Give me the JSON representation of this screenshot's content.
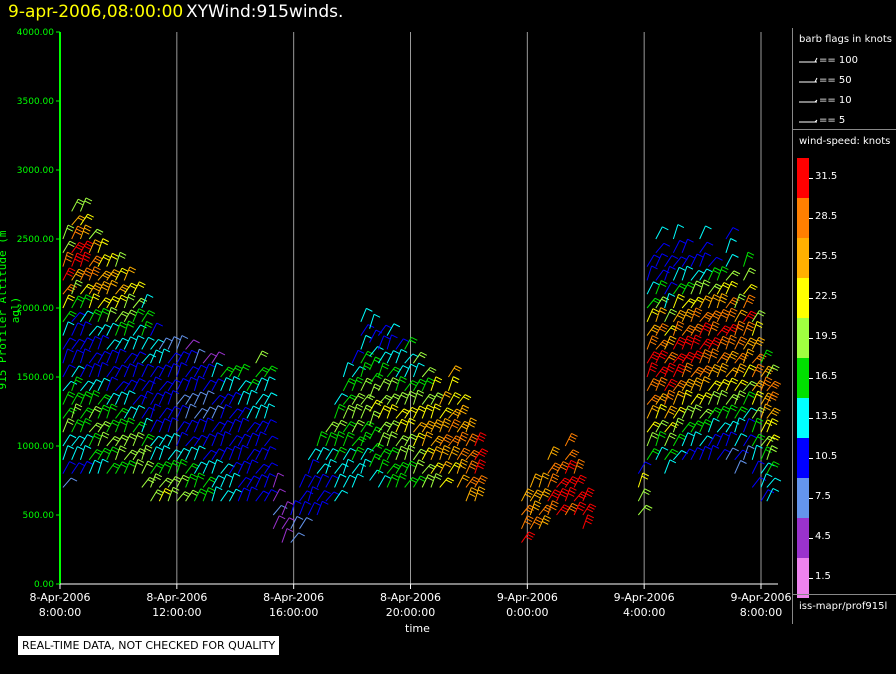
{
  "header": {
    "date_label": "9-apr-2006,08:00:00",
    "product_label": "XYWind:915winds."
  },
  "notice": "REAL-TIME DATA, NOT CHECKED FOR QUALITY",
  "legend": {
    "barb_title": "barb flags in knots",
    "barbs": [
      {
        "label": "== 100",
        "value": 100
      },
      {
        "label": "== 50",
        "value": 50
      },
      {
        "label": "== 10",
        "value": 10
      },
      {
        "label": "== 5",
        "value": 5
      }
    ],
    "speed_title": "wind-speed: knots",
    "color_levels": [
      {
        "label": "31.5",
        "color": "#ff0000"
      },
      {
        "label": "28.5",
        "color": "#ff7f00"
      },
      {
        "label": "25.5",
        "color": "#ffb000"
      },
      {
        "label": "22.5",
        "color": "#ffff00"
      },
      {
        "label": "19.5",
        "color": "#a0ff40"
      },
      {
        "label": "16.5",
        "color": "#00e000"
      },
      {
        "label": "13.5",
        "color": "#00ffff"
      },
      {
        "label": "10.5",
        "color": "#0000ff"
      },
      {
        "label": "7.5",
        "color": "#6495ed"
      },
      {
        "label": "4.5",
        "color": "#9a32cd"
      },
      {
        "label": "1.5",
        "color": "#ee82ee"
      }
    ],
    "source": "iss-mapr/prof915l"
  },
  "colors": {
    "axis": "#00ff00",
    "grid": "#ffffff",
    "background": "#000000"
  },
  "chart_data": {
    "type": "wind-barb time-height",
    "xlabel": "time",
    "ylabel": "915 Profiler Altitude (m agl)",
    "ylim": [
      0,
      4000
    ],
    "y_ticks": [
      "0.00",
      "500.00",
      "1000.00",
      "1500.00",
      "2000.00",
      "2500.00",
      "3000.00",
      "3500.00",
      "4000.00"
    ],
    "x_range_hours": [
      0,
      24.3
    ],
    "x_ticks": [
      {
        "line1": "8-Apr-2006",
        "line2": "8:00:00",
        "hour": 0
      },
      {
        "line1": "8-Apr-2006",
        "line2": "12:00:00",
        "hour": 4
      },
      {
        "line1": "8-Apr-2006",
        "line2": "16:00:00",
        "hour": 8
      },
      {
        "line1": "8-Apr-2006",
        "line2": "20:00:00",
        "hour": 12
      },
      {
        "line1": "9-Apr-2006",
        "line2": "0:00:00",
        "hour": 16
      },
      {
        "line1": "9-Apr-2006",
        "line2": "4:00:00",
        "hour": 20
      },
      {
        "line1": "9-Apr-2006",
        "line2": "8:00:00",
        "hour": 24
      }
    ],
    "columns": [
      {
        "hour": 0.1,
        "top": 2500,
        "speed": [
          8,
          9,
          12,
          14,
          18,
          17,
          16,
          14,
          11,
          9,
          10,
          12,
          16,
          22,
          28,
          31,
          28,
          20,
          18
        ]
      },
      {
        "hour": 0.4,
        "top": 2700,
        "speed": [
          9,
          12,
          13,
          16,
          18,
          17,
          15,
          12,
          10,
          9,
          9,
          11,
          15,
          20,
          26,
          30,
          31,
          29,
          24,
          20
        ]
      },
      {
        "hour": 0.7,
        "top": 2700,
        "speed": [
          10,
          12,
          14,
          16,
          17,
          16,
          14,
          11,
          10,
          9,
          10,
          12,
          17,
          23,
          28,
          31,
          30,
          26,
          22,
          19
        ]
      },
      {
        "hour": 1.0,
        "top": 2500,
        "speed": [
          12,
          15,
          17,
          19,
          18,
          16,
          13,
          11,
          10,
          11,
          12,
          16,
          21,
          25,
          29,
          27,
          24,
          20
        ]
      },
      {
        "hour": 1.3,
        "top": 2400,
        "speed": [
          14,
          16,
          18,
          19,
          17,
          15,
          12,
          11,
          10,
          11,
          13,
          17,
          22,
          26,
          25,
          23,
          21
        ]
      },
      {
        "hour": 1.6,
        "top": 2300,
        "speed": [
          15,
          17,
          18,
          17,
          16,
          13,
          11,
          10,
          11,
          12,
          14,
          18,
          21,
          24,
          26,
          22
        ]
      },
      {
        "hour": 1.9,
        "top": 2300,
        "speed": [
          16,
          18,
          19,
          17,
          15,
          12,
          11,
          10,
          10,
          12,
          15,
          19,
          22,
          25,
          21,
          19
        ]
      },
      {
        "hour": 2.2,
        "top": 2200,
        "speed": [
          17,
          19,
          18,
          16,
          14,
          12,
          10,
          10,
          11,
          13,
          15,
          18,
          20,
          22,
          24
        ]
      },
      {
        "hour": 2.5,
        "top": 2100,
        "speed": [
          18,
          20,
          18,
          16,
          14,
          11,
          10,
          10,
          11,
          12,
          14,
          16,
          18,
          21
        ]
      },
      {
        "hour": 2.8,
        "top": 2000,
        "speed": [
          19,
          20,
          18,
          15,
          13,
          11,
          10,
          9,
          10,
          12,
          13,
          15,
          17,
          14
        ]
      },
      {
        "hour": 3.1,
        "top": 1800,
        "speed": [
          20,
          19,
          17,
          14,
          12,
          11,
          10,
          9,
          10,
          11,
          12,
          13,
          9
        ]
      },
      {
        "hour": 3.4,
        "top": 1700,
        "speed": [
          21,
          19,
          16,
          14,
          12,
          10,
          9,
          9,
          10,
          11,
          12,
          8
        ]
      },
      {
        "hour": 3.7,
        "top": 1700,
        "speed": [
          20,
          18,
          16,
          13,
          12,
          10,
          9,
          9,
          10,
          11,
          11,
          7
        ]
      },
      {
        "hour": 4.0,
        "top": 1700,
        "speed": [
          19,
          18,
          15,
          13,
          11,
          10,
          9,
          8,
          9,
          10,
          11,
          6
        ]
      },
      {
        "hour": 4.3,
        "top": 1700,
        "speed": [
          18,
          17,
          15,
          12,
          11,
          9,
          8,
          8,
          9,
          10,
          10,
          5
        ]
      },
      {
        "hour": 4.6,
        "top": 1600,
        "speed": [
          17,
          16,
          14,
          12,
          10,
          9,
          8,
          8,
          9,
          10,
          6
        ]
      },
      {
        "hour": 4.9,
        "top": 1600,
        "speed": [
          16,
          15,
          13,
          11,
          10,
          9,
          8,
          8,
          9,
          11,
          5
        ]
      },
      {
        "hour": 5.2,
        "top": 1600,
        "speed": [
          14,
          14,
          12,
          11,
          10,
          9,
          8,
          9,
          10,
          12,
          4
        ]
      },
      {
        "hour": 5.5,
        "top": 1500,
        "speed": [
          13,
          13,
          12,
          11,
          10,
          9,
          9,
          10,
          12,
          15
        ]
      },
      {
        "hour": 5.8,
        "top": 1500,
        "speed": [
          12,
          12,
          11,
          11,
          10,
          10,
          10,
          11,
          13,
          16
        ]
      },
      {
        "hour": 6.1,
        "top": 1500,
        "speed": [
          11,
          11,
          11,
          10,
          10,
          10,
          11,
          12,
          14,
          17
        ]
      },
      {
        "hour": 6.4,
        "top": 1400,
        "speed": [
          10,
          11,
          10,
          10,
          10,
          11,
          12,
          13,
          15
        ]
      },
      {
        "hour": 6.7,
        "top": 1600,
        "speed": [
          10,
          10,
          10,
          10,
          10,
          11,
          12,
          13,
          14,
          16,
          19
        ]
      },
      {
        "hour": 7.0,
        "top": 1500,
        "speed": [
          10,
          10,
          10,
          10,
          11,
          11,
          12,
          13,
          14,
          15
        ]
      },
      {
        "hour": 7.3,
        "top": 700,
        "speed": [
          5,
          6,
          5,
          4
        ]
      },
      {
        "hour": 7.6,
        "top": 500,
        "speed": [
          4,
          5,
          4
        ]
      },
      {
        "hour": 7.9,
        "top": 500,
        "speed": [
          6,
          8,
          9
        ]
      },
      {
        "hour": 8.2,
        "top": 700,
        "speed": [
          8,
          9,
          10,
          10
        ]
      },
      {
        "hour": 8.5,
        "top": 900,
        "speed": [
          9,
          10,
          10,
          11,
          12
        ]
      },
      {
        "hour": 8.8,
        "top": 1000,
        "speed": [
          10,
          10,
          11,
          12,
          14,
          15
        ]
      },
      {
        "hour": 9.1,
        "top": 1100,
        "speed": [
          11,
          11,
          12,
          14,
          16,
          18
        ]
      },
      {
        "hour": 9.4,
        "top": 1300,
        "speed": [
          12,
          12,
          13,
          15,
          16,
          18,
          17,
          14
        ]
      },
      {
        "hour": 9.7,
        "top": 1500,
        "speed": [
          12,
          13,
          14,
          15,
          17,
          18,
          17,
          15,
          12
        ]
      },
      {
        "hour": 10.0,
        "top": 1600,
        "speed": [
          13,
          14,
          15,
          16,
          18,
          19,
          18,
          16,
          13,
          10
        ]
      },
      {
        "hour": 10.3,
        "top": 1900,
        "speed": [
          13,
          14,
          15,
          17,
          18,
          20,
          19,
          17,
          15,
          12,
          10,
          13
        ]
      },
      {
        "hour": 10.6,
        "top": 1850,
        "speed": [
          14,
          15,
          16,
          17,
          19,
          21,
          19,
          17,
          15,
          12,
          10,
          12
        ]
      },
      {
        "hour": 10.9,
        "top": 1800,
        "speed": [
          14,
          15,
          16,
          18,
          20,
          21,
          20,
          18,
          15,
          12,
          10,
          11
        ]
      },
      {
        "hour": 11.2,
        "top": 1800,
        "speed": [
          15,
          16,
          17,
          19,
          20,
          22,
          20,
          18,
          15,
          13,
          11,
          12
        ]
      },
      {
        "hour": 11.5,
        "top": 1700,
        "speed": [
          15,
          16,
          18,
          19,
          21,
          22,
          20,
          17,
          14,
          12,
          10
        ]
      },
      {
        "hour": 11.8,
        "top": 1700,
        "speed": [
          16,
          17,
          18,
          20,
          22,
          23,
          20,
          17,
          14,
          12,
          15
        ]
      },
      {
        "hour": 12.1,
        "top": 1600,
        "speed": [
          17,
          18,
          20,
          22,
          24,
          23,
          19,
          16,
          13,
          18
        ]
      },
      {
        "hour": 12.4,
        "top": 1500,
        "speed": [
          18,
          20,
          22,
          24,
          25,
          23,
          19,
          16,
          20
        ]
      },
      {
        "hour": 12.7,
        "top": 1400,
        "speed": [
          20,
          22,
          24,
          26,
          25,
          22,
          19,
          22
        ]
      },
      {
        "hour": 13.0,
        "top": 1300,
        "speed": [
          22,
          24,
          26,
          27,
          25,
          22,
          24
        ]
      },
      {
        "hour": 13.3,
        "top": 1500,
        "speed": [
          23,
          25,
          27,
          28,
          26,
          23,
          21,
          24
        ]
      },
      {
        "hour": 13.6,
        "top": 1300,
        "speed": [
          24,
          26,
          27,
          28,
          26,
          25,
          22
        ]
      },
      {
        "hour": 13.9,
        "top": 1100,
        "speed": [
          25,
          27,
          28,
          29,
          27,
          26
        ]
      },
      {
        "hour": 14.2,
        "top": 1000,
        "speed": [
          26,
          28,
          30,
          31,
          30
        ]
      },
      {
        "hour": 15.8,
        "top": 600,
        "speed": [
          30,
          28,
          27,
          25
        ]
      },
      {
        "hour": 16.1,
        "top": 700,
        "speed": [
          27,
          26,
          25,
          24
        ]
      },
      {
        "hour": 16.4,
        "top": 700,
        "speed": [
          25,
          27,
          26,
          24
        ]
      },
      {
        "hour": 16.7,
        "top": 900,
        "speed": [
          28,
          30,
          29,
          27,
          26
        ]
      },
      {
        "hour": 17.0,
        "top": 800,
        "speed": [
          30,
          31,
          30,
          28
        ]
      },
      {
        "hour": 17.3,
        "top": 1000,
        "speed": [
          29,
          31,
          31,
          30,
          28,
          27
        ]
      },
      {
        "hour": 17.6,
        "top": 800,
        "speed": [
          30,
          31,
          30,
          29
        ]
      },
      {
        "hour": 17.9,
        "top": 600,
        "speed": [
          31,
          31,
          30
        ]
      },
      {
        "hour": 19.8,
        "top": 800,
        "speed": [
          18,
          20,
          22,
          9
        ]
      },
      {
        "hour": 20.1,
        "top": 2300,
        "speed": [
          16,
          18,
          21,
          24,
          27,
          29,
          31,
          30,
          28,
          25,
          22,
          17,
          12,
          9,
          10
        ]
      },
      {
        "hour": 20.4,
        "top": 2500,
        "speed": [
          14,
          17,
          20,
          23,
          26,
          29,
          31,
          31,
          29,
          27,
          24,
          20,
          15,
          11,
          9,
          10,
          12
        ]
      },
      {
        "hour": 20.7,
        "top": 2300,
        "speed": [
          13,
          16,
          19,
          22,
          25,
          28,
          30,
          31,
          29,
          26,
          23,
          19,
          14,
          10,
          9,
          11
        ]
      },
      {
        "hour": 21.0,
        "top": 2500,
        "speed": [
          12,
          15,
          18,
          21,
          24,
          27,
          30,
          31,
          30,
          28,
          25,
          21,
          16,
          12,
          10,
          11,
          13
        ]
      },
      {
        "hour": 21.3,
        "top": 2400,
        "speed": [
          11,
          14,
          17,
          20,
          23,
          26,
          29,
          31,
          30,
          28,
          26,
          22,
          17,
          12,
          10,
          11
        ]
      },
      {
        "hour": 21.6,
        "top": 2300,
        "speed": [
          10,
          13,
          16,
          19,
          22,
          25,
          28,
          30,
          31,
          29,
          27,
          23,
          18,
          13,
          10
        ]
      },
      {
        "hour": 21.9,
        "top": 2500,
        "speed": [
          10,
          12,
          15,
          18,
          21,
          24,
          27,
          29,
          31,
          30,
          28,
          24,
          19,
          14,
          11,
          10,
          12
        ]
      },
      {
        "hour": 22.2,
        "top": 2300,
        "speed": [
          9,
          11,
          14,
          17,
          20,
          23,
          26,
          28,
          30,
          29,
          27,
          24,
          20,
          15,
          11
        ]
      },
      {
        "hour": 22.5,
        "top": 2200,
        "speed": [
          9,
          11,
          13,
          16,
          19,
          22,
          25,
          27,
          29,
          30,
          28,
          25,
          21,
          16
        ]
      },
      {
        "hour": 22.8,
        "top": 2500,
        "speed": [
          8,
          10,
          12,
          15,
          18,
          21,
          24,
          26,
          28,
          30,
          29,
          27,
          23,
          18,
          14,
          12,
          9
        ]
      },
      {
        "hour": 23.1,
        "top": 2000,
        "speed": [
          8,
          10,
          12,
          14,
          17,
          20,
          23,
          25,
          27,
          29,
          28,
          24,
          19
        ]
      },
      {
        "hour": 23.4,
        "top": 2300,
        "speed": [
          8,
          9,
          11,
          14,
          16,
          19,
          22,
          24,
          26,
          28,
          30,
          27,
          23,
          18,
          15
        ]
      },
      {
        "hour": 23.7,
        "top": 1900,
        "speed": [
          9,
          10,
          12,
          15,
          17,
          20,
          22,
          25,
          27,
          29,
          26,
          22,
          18
        ]
      },
      {
        "hour": 24.0,
        "top": 1600,
        "speed": [
          10,
          12,
          14,
          16,
          19,
          22,
          24,
          26,
          28,
          25,
          16
        ]
      },
      {
        "hour": 24.2,
        "top": 1500,
        "speed": [
          12,
          14,
          16,
          18,
          21,
          23,
          26,
          29,
          27,
          20
        ]
      }
    ]
  }
}
